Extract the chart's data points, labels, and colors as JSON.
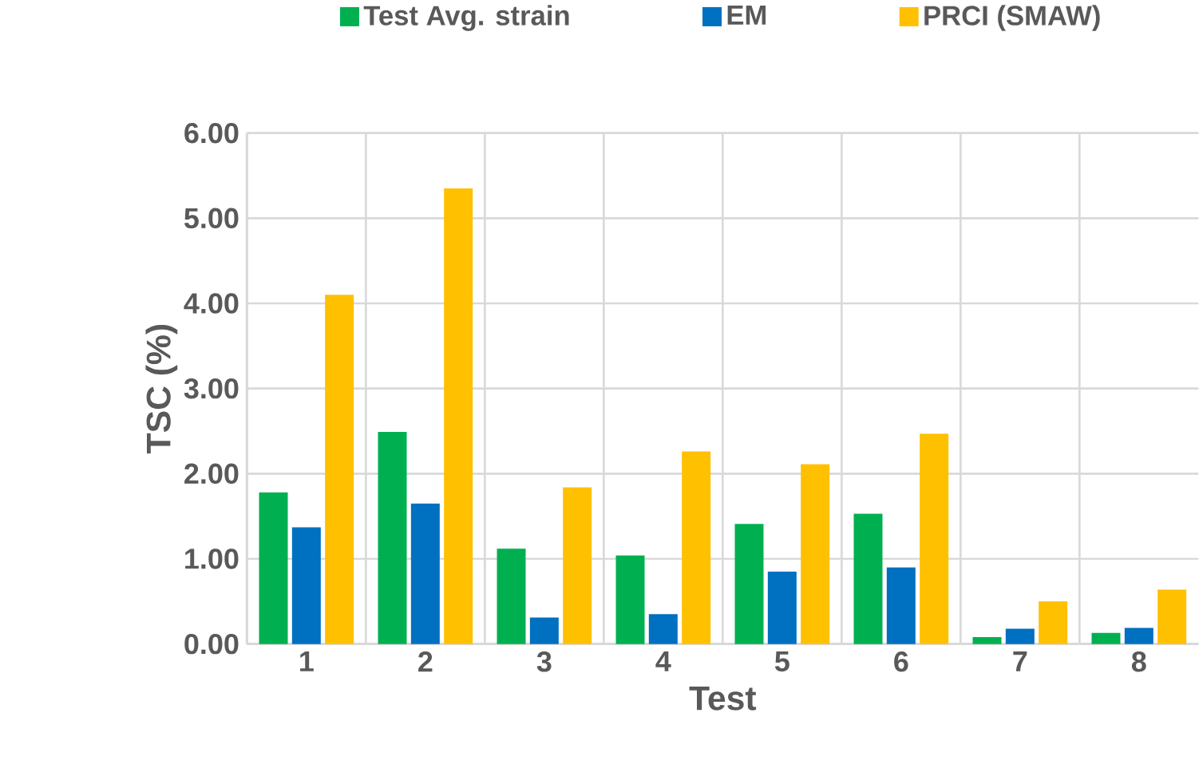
{
  "chart_data": {
    "type": "bar",
    "xlabel": "Test",
    "ylabel": "TSC (%)",
    "categories": [
      "1",
      "2",
      "3",
      "4",
      "5",
      "6",
      "7",
      "8"
    ],
    "series": [
      {
        "name": "Test Avg. strain",
        "color": "#00b050",
        "values": [
          1.78,
          2.49,
          1.12,
          1.04,
          1.41,
          1.53,
          0.08,
          0.13
        ]
      },
      {
        "name": "EM",
        "color": "#0070c0",
        "values": [
          1.37,
          1.65,
          0.31,
          0.35,
          0.85,
          0.9,
          0.18,
          0.19
        ]
      },
      {
        "name": "PRCI (SMAW)",
        "color": "#ffc000",
        "values": [
          4.1,
          5.35,
          1.84,
          2.26,
          2.11,
          2.47,
          0.5,
          0.64
        ]
      }
    ],
    "ylim": [
      0,
      6
    ],
    "yticks": [
      {
        "value": 0,
        "label": "0.00"
      },
      {
        "value": 1,
        "label": "1.00"
      },
      {
        "value": 2,
        "label": "2.00"
      },
      {
        "value": 3,
        "label": "3.00"
      },
      {
        "value": 4,
        "label": "4.00"
      },
      {
        "value": 5,
        "label": "5.00"
      },
      {
        "value": 6,
        "label": "6.00"
      }
    ],
    "grid": true,
    "legend": "top"
  }
}
